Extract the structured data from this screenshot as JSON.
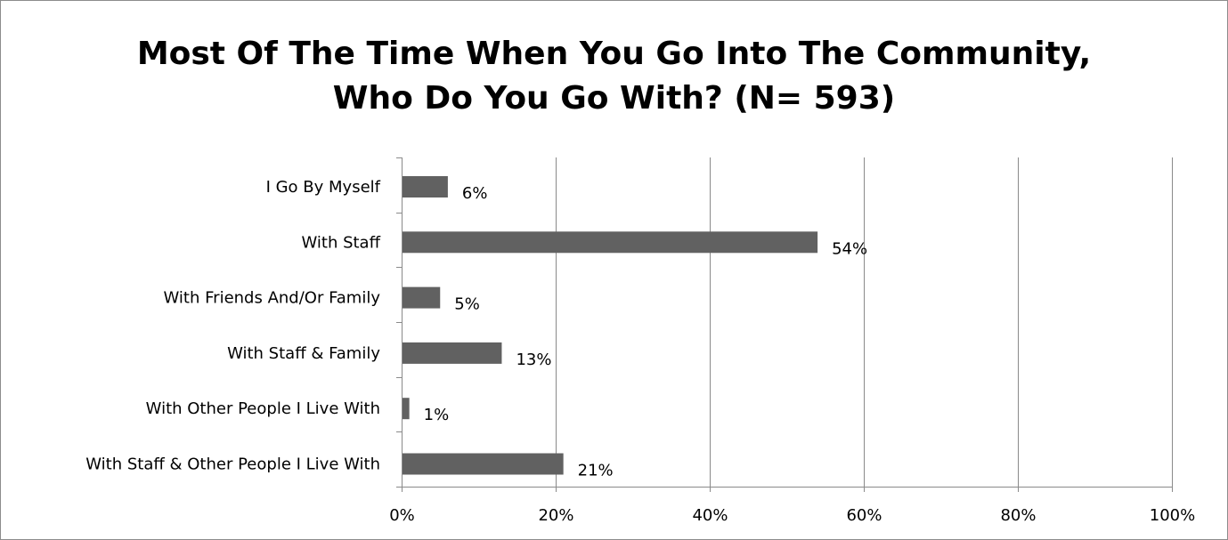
{
  "chart_data": {
    "type": "bar",
    "orientation": "horizontal",
    "title": "Most Of The Time When You Go Into The Community, Who Do You Go With? (N= 593)",
    "title_lines": [
      "Most Of The Time When You Go Into The Community,",
      "Who Do You Go With? (N= 593)"
    ],
    "categories": [
      "I Go By Myself",
      "With Staff",
      "With Friends And/Or Family",
      "With Staff & Family",
      "With Other People I Live With",
      "With Staff & Other People I Live With"
    ],
    "values": [
      6,
      54,
      5,
      13,
      1,
      21
    ],
    "data_labels": [
      "6%",
      "54%",
      "5%",
      "13%",
      "1%",
      "21%"
    ],
    "xlim": [
      0,
      100
    ],
    "x_ticks": [
      0,
      20,
      40,
      60,
      80,
      100
    ],
    "x_tick_labels": [
      "0%",
      "20%",
      "40%",
      "60%",
      "80%",
      "100%"
    ],
    "grid": "vertical",
    "legend": "none",
    "bar_color": "#616161"
  }
}
